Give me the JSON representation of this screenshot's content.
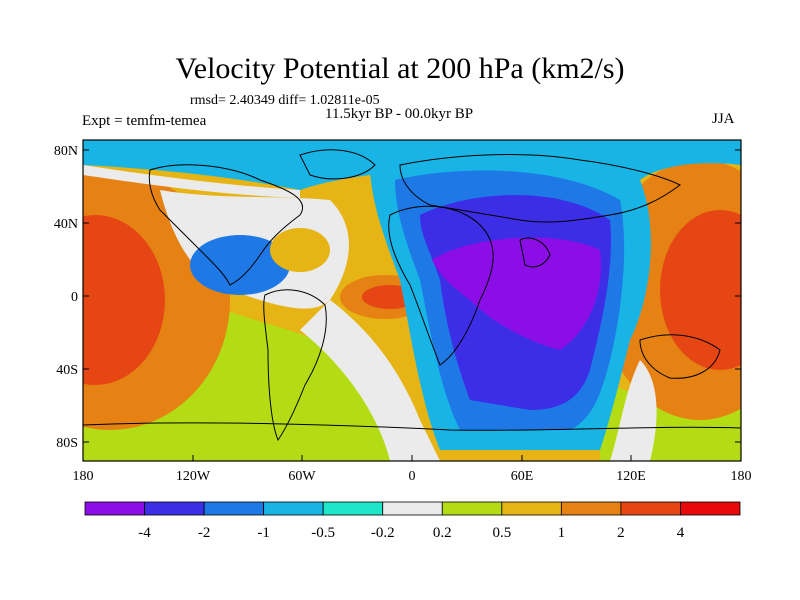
{
  "title": "Velocity Potential at 200 hPa (km2/s)",
  "stats": "rmsd= 2.40349 diff= 1.02811e-05",
  "period": "11.5kyr BP - 00.0kyr BP",
  "experiment": "Expt = temfm-temea",
  "season": "JJA",
  "lat_ticks": [
    "80N",
    "40N",
    "0",
    "40S",
    "80S"
  ],
  "lon_ticks": [
    "180",
    "120W",
    "60W",
    "0",
    "60E",
    "120E",
    "180"
  ],
  "colorbar": {
    "labels": [
      "-4",
      "-2",
      "-1",
      "-0.5",
      "-0.2",
      "0.2",
      "0.5",
      "1",
      "2",
      "4"
    ],
    "colors": [
      "#8c0ee6",
      "#3c2ee6",
      "#1e78e6",
      "#18b4e6",
      "#1ee6c8",
      "#ebebeb",
      "#b4dc14",
      "#e6b414",
      "#e68214",
      "#e64614",
      "#e60a0a"
    ]
  }
}
